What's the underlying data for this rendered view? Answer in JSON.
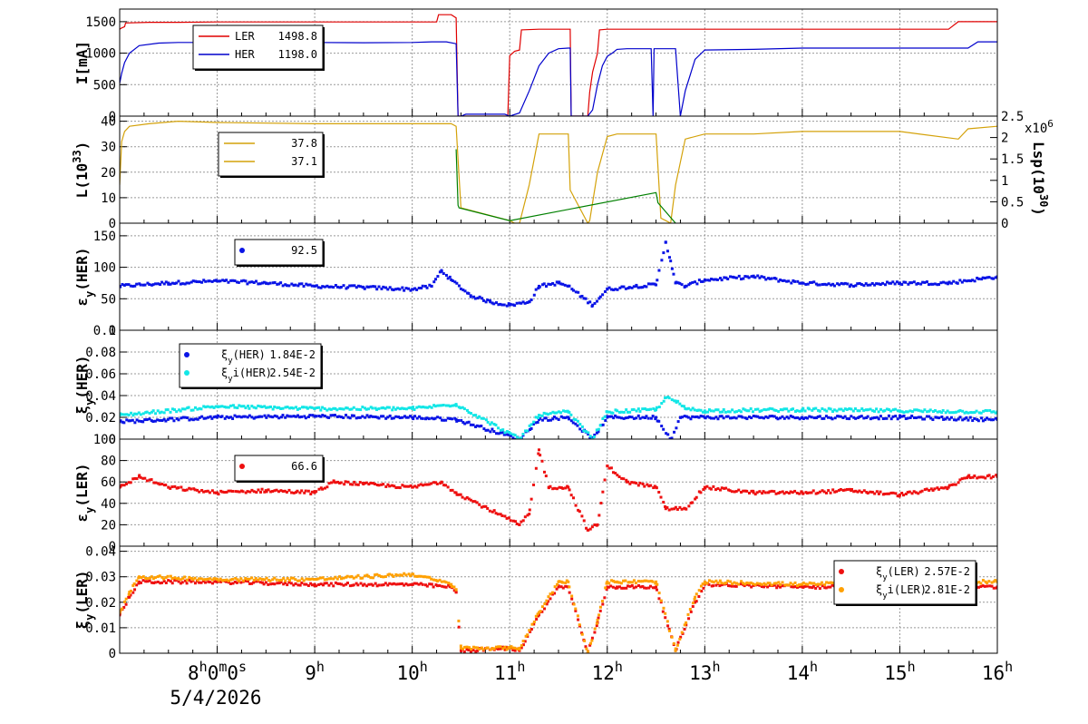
{
  "colors": {
    "ler": "#e00000",
    "her": "#0000cc",
    "gold": "#d4a20a",
    "green": "#008000",
    "blue_pts": "#0a14e6",
    "cyan_pts": "#12e6e6",
    "red_pts": "#ee1010",
    "orange_pts": "#ffa000",
    "grid": "#999999",
    "frame": "#000000"
  },
  "footer": {
    "date": "5/4/2026",
    "first_tick_label": "8h0m0s",
    "hour_labels": [
      "8",
      "9",
      "10",
      "11",
      "12",
      "13",
      "14",
      "15",
      "16"
    ],
    "hour_suffix": "h"
  },
  "chart_data": [
    {
      "id": "current",
      "type": "line",
      "ylabel": "I[mA]",
      "ylim": [
        0,
        1700
      ],
      "yticks": [
        "0",
        "500",
        "1000",
        "1500"
      ],
      "xlim_hours": [
        7.0,
        16.0
      ],
      "legend": {
        "placement": "top-left",
        "entries": [
          {
            "label": "LER",
            "value": "1498.8",
            "color_key": "ler"
          },
          {
            "label": "HER",
            "value": "1198.0",
            "color_key": "her"
          }
        ]
      },
      "series": [
        {
          "name": "LER",
          "color_key": "ler",
          "x": [
            7.0,
            7.02,
            7.05,
            7.06,
            7.3,
            7.6,
            8.0,
            9.0,
            9.8,
            10.0,
            10.25,
            10.27,
            10.4,
            10.45,
            10.47,
            10.5,
            10.98,
            11.0,
            11.05,
            11.1,
            11.12,
            11.3,
            11.6,
            11.62,
            11.63,
            11.8,
            11.82,
            11.85,
            11.9,
            11.92,
            12.0,
            12.5,
            12.7,
            13.0,
            14.0,
            15.0,
            15.5,
            15.6,
            16.0
          ],
          "y": [
            1380,
            1400,
            1420,
            1480,
            1490,
            1490,
            1495,
            1495,
            1495,
            1495,
            1495,
            1610,
            1610,
            1560,
            0,
            0,
            0,
            960,
            1030,
            1050,
            1370,
            1380,
            1380,
            1380,
            0,
            0,
            380,
            700,
            1000,
            1370,
            1380,
            1380,
            1380,
            1380,
            1380,
            1380,
            1380,
            1500,
            1500
          ]
        },
        {
          "name": "HER",
          "color_key": "her",
          "x": [
            7.0,
            7.02,
            7.05,
            7.1,
            7.2,
            7.4,
            7.6,
            8.0,
            8.5,
            9.0,
            9.5,
            10.0,
            10.2,
            10.35,
            10.45,
            10.47,
            10.5,
            10.55,
            10.95,
            11.0,
            11.1,
            11.2,
            11.3,
            11.4,
            11.5,
            11.6,
            11.62,
            11.63,
            11.8,
            11.85,
            11.9,
            11.95,
            12.0,
            12.05,
            12.1,
            12.2,
            12.3,
            12.45,
            12.47,
            12.48,
            12.7,
            12.75,
            12.8,
            12.9,
            13.0,
            13.5,
            14.0,
            15.0,
            15.7,
            15.8,
            16.0
          ],
          "y": [
            520,
            680,
            850,
            1000,
            1120,
            1160,
            1170,
            1170,
            1160,
            1170,
            1165,
            1170,
            1180,
            1180,
            1150,
            0,
            0,
            30,
            30,
            0,
            50,
            400,
            800,
            1000,
            1070,
            1080,
            1080,
            0,
            0,
            100,
            500,
            800,
            950,
            1000,
            1060,
            1070,
            1070,
            1070,
            0,
            1070,
            1070,
            0,
            400,
            900,
            1050,
            1060,
            1080,
            1080,
            1080,
            1180,
            1180
          ]
        }
      ]
    },
    {
      "id": "luminosity",
      "type": "line",
      "ylabel": "L(10^33)",
      "ylim": [
        0,
        42
      ],
      "yticks": [
        "0",
        "10",
        "20",
        "30",
        "40"
      ],
      "ylabel_right": "Lsp(10^30)",
      "right_ylim": [
        0,
        2.5
      ],
      "right_yticks": [
        "0",
        "0.5",
        "1",
        "1.5",
        "2",
        "2.5"
      ],
      "right_multiplier": "x10^6",
      "legend": {
        "placement": "top-left",
        "entries": [
          {
            "label": "",
            "value": "37.8",
            "color_key": "gold"
          },
          {
            "label": "",
            "value": "37.1",
            "color_key": "gold"
          }
        ]
      },
      "series": [
        {
          "name": "L",
          "color_key": "gold",
          "x": [
            7.0,
            7.02,
            7.05,
            7.1,
            7.3,
            7.6,
            8.0,
            9.0,
            9.5,
            10.0,
            10.3,
            10.4,
            10.45,
            10.47,
            10.5,
            11.0,
            11.05,
            11.1,
            11.2,
            11.3,
            11.4,
            11.6,
            11.62,
            11.8,
            11.82,
            11.9,
            12.0,
            12.1,
            12.5,
            12.55,
            12.6,
            12.65,
            12.7,
            12.8,
            13.0,
            13.5,
            14.0,
            15.0,
            15.6,
            15.7,
            16.0
          ],
          "y": [
            15,
            32,
            36,
            38,
            39,
            40,
            39.5,
            39,
            39,
            39,
            39,
            39,
            38,
            25,
            6,
            1,
            0,
            0,
            15,
            35,
            35,
            35,
            13,
            0,
            1,
            20,
            34,
            35,
            35,
            2,
            1,
            0,
            15,
            33,
            35,
            35,
            36,
            36,
            33,
            37,
            38
          ]
        },
        {
          "name": "Lsp",
          "color_key": "green",
          "x": [
            10.45,
            10.47,
            10.48,
            11.0,
            12.5,
            12.52,
            12.7
          ],
          "y": [
            29,
            7,
            6,
            1,
            12,
            8,
            0
          ]
        }
      ]
    },
    {
      "id": "emit_her",
      "type": "scatter",
      "ylabel": "εy(HER)",
      "ylim": [
        0,
        170
      ],
      "yticks": [
        "0",
        "50",
        "100",
        "150"
      ],
      "legend": {
        "placement": "top-left",
        "entries": [
          {
            "label": "",
            "value": "92.5",
            "color_key": "blue_pts"
          }
        ]
      },
      "series": [
        {
          "name": "",
          "color_key": "blue_pts",
          "x": [
            7.0,
            7.5,
            8.0,
            8.5,
            9.0,
            9.5,
            10.0,
            10.2,
            10.3,
            10.4,
            10.6,
            10.8,
            11.0,
            11.2,
            11.3,
            11.5,
            11.6,
            11.85,
            12.0,
            12.3,
            12.5,
            12.6,
            12.65,
            12.7,
            12.8,
            13.0,
            13.5,
            14.0,
            14.5,
            15.0,
            15.5,
            16.0
          ],
          "y": [
            70,
            75,
            78,
            75,
            70,
            68,
            65,
            70,
            95,
            80,
            55,
            45,
            40,
            45,
            70,
            75,
            70,
            40,
            65,
            70,
            72,
            140,
            110,
            75,
            70,
            80,
            85,
            75,
            72,
            75,
            75,
            85
          ]
        }
      ]
    },
    {
      "id": "xi_her",
      "type": "scatter",
      "ylabel": "ξy(HER)",
      "ylim": [
        0,
        0.1
      ],
      "yticks": [
        "0",
        "0.02",
        "0.04",
        "0.06",
        "0.08",
        "0.1"
      ],
      "legend": {
        "placement": "top-left",
        "entries": [
          {
            "label": "ξy(HER)",
            "value": "1.84E-2",
            "color_key": "blue_pts"
          },
          {
            "label": "ξyi(HER)",
            "value": "2.54E-2",
            "color_key": "cyan_pts"
          }
        ]
      },
      "series": [
        {
          "name": "ξy(HER)",
          "color_key": "blue_pts",
          "x": [
            7.0,
            8.0,
            9.0,
            10.0,
            10.45,
            11.1,
            11.3,
            11.6,
            11.85,
            12.0,
            12.5,
            12.65,
            12.75,
            13.0,
            14.0,
            15.0,
            16.0
          ],
          "y": [
            0.016,
            0.02,
            0.021,
            0.02,
            0.018,
            0.0,
            0.018,
            0.02,
            0.0,
            0.02,
            0.02,
            0.0,
            0.02,
            0.02,
            0.02,
            0.02,
            0.018
          ]
        },
        {
          "name": "ξyi(HER)",
          "color_key": "cyan_pts",
          "x": [
            7.0,
            8.0,
            9.0,
            10.0,
            10.45,
            11.1,
            11.3,
            11.6,
            11.85,
            12.0,
            12.5,
            12.6,
            12.7,
            12.8,
            13.0,
            14.0,
            15.0,
            16.0
          ],
          "y": [
            0.022,
            0.03,
            0.028,
            0.028,
            0.032,
            0.0,
            0.022,
            0.025,
            0.0,
            0.025,
            0.027,
            0.038,
            0.035,
            0.028,
            0.026,
            0.027,
            0.026,
            0.025
          ]
        }
      ]
    },
    {
      "id": "emit_ler",
      "type": "scatter",
      "ylabel": "εy(LER)",
      "ylim": [
        0,
        100
      ],
      "yticks": [
        "0",
        "20",
        "40",
        "60",
        "80",
        "100"
      ],
      "legend": {
        "placement": "top-left",
        "entries": [
          {
            "label": "",
            "value": "66.6",
            "color_key": "red_pts"
          }
        ]
      },
      "series": [
        {
          "name": "",
          "color_key": "red_pts",
          "x": [
            7.0,
            7.2,
            7.5,
            8.0,
            8.5,
            9.0,
            9.2,
            9.5,
            10.0,
            10.3,
            10.45,
            11.1,
            11.2,
            11.3,
            11.4,
            11.6,
            11.8,
            11.9,
            12.0,
            12.2,
            12.5,
            12.6,
            12.8,
            13.0,
            13.5,
            14.0,
            14.5,
            15.0,
            15.5,
            15.7,
            16.0
          ],
          "y": [
            55,
            65,
            55,
            50,
            52,
            50,
            60,
            58,
            55,
            60,
            50,
            20,
            30,
            90,
            55,
            55,
            15,
            20,
            75,
            60,
            55,
            35,
            35,
            55,
            50,
            50,
            52,
            48,
            55,
            65,
            65
          ]
        }
      ]
    },
    {
      "id": "xi_ler",
      "type": "scatter",
      "ylabel": "ξy(LER)",
      "ylim": [
        0,
        0.042
      ],
      "yticks": [
        "0",
        "0.01",
        "0.02",
        "0.03",
        "0.04"
      ],
      "legend": {
        "placement": "top-right",
        "entries": [
          {
            "label": "ξy(LER)",
            "value": "2.57E-2",
            "color_key": "red_pts"
          },
          {
            "label": "ξyi(LER)",
            "value": "2.81E-2",
            "color_key": "orange_pts"
          }
        ]
      },
      "series": [
        {
          "name": "ξy(LER)",
          "color_key": "red_pts",
          "x": [
            7.0,
            7.1,
            7.2,
            8.0,
            9.0,
            10.0,
            10.4,
            10.45,
            10.5,
            11.0,
            11.1,
            11.3,
            11.5,
            11.6,
            11.8,
            11.9,
            12.0,
            12.1,
            12.5,
            12.7,
            12.9,
            13.0,
            14.0,
            15.0,
            16.0
          ],
          "y": [
            0.015,
            0.022,
            0.028,
            0.028,
            0.027,
            0.027,
            0.026,
            0.024,
            0.001,
            0.002,
            0.001,
            0.015,
            0.026,
            0.026,
            0.0,
            0.012,
            0.026,
            0.026,
            0.026,
            0.001,
            0.02,
            0.027,
            0.026,
            0.026,
            0.026
          ]
        },
        {
          "name": "ξyi(LER)",
          "color_key": "orange_pts",
          "x": [
            7.0,
            7.1,
            7.2,
            8.0,
            9.0,
            10.0,
            10.4,
            10.45,
            10.5,
            11.0,
            11.1,
            11.3,
            11.5,
            11.6,
            11.8,
            11.9,
            12.0,
            12.1,
            12.5,
            12.7,
            12.9,
            13.0,
            14.0,
            15.0,
            16.0
          ],
          "y": [
            0.016,
            0.024,
            0.03,
            0.029,
            0.029,
            0.031,
            0.027,
            0.025,
            0.002,
            0.002,
            0.002,
            0.016,
            0.028,
            0.028,
            0.0,
            0.013,
            0.028,
            0.028,
            0.028,
            0.001,
            0.022,
            0.028,
            0.027,
            0.028,
            0.028
          ]
        }
      ]
    }
  ]
}
